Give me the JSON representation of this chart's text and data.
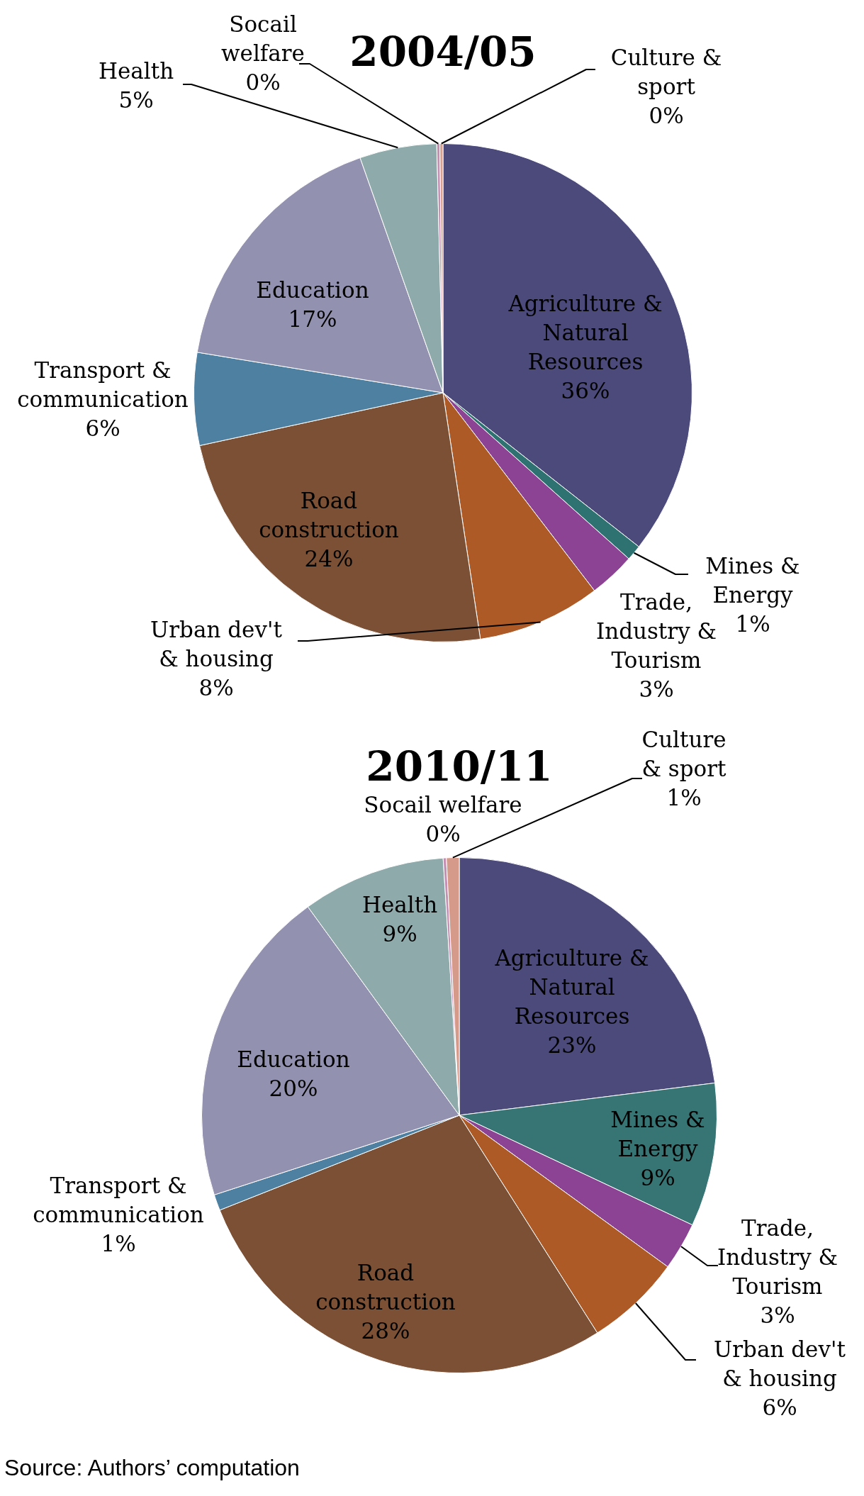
{
  "chart_data": [
    {
      "type": "pie",
      "title": "2004/05",
      "categories": [
        "Agriculture & Natural Resources",
        "Mines & Energy",
        "Trade, Industry & Tourism",
        "Urban dev't & housing",
        "Road construction",
        "Transport & communication",
        "Education",
        "Health",
        "Socail welfare",
        "Culture & sport"
      ],
      "values": [
        35.6,
        1,
        3,
        8,
        24,
        6,
        17,
        5,
        0.2,
        0.2
      ],
      "colors": [
        "#4b4a7b",
        "#2e7272",
        "#8c4394",
        "#ae5a27",
        "#7b5034",
        "#4e80a2",
        "#9391b0",
        "#8faaab",
        "#c48fb3",
        "#d9a08f"
      ],
      "value_labels": [
        "36%",
        "1%",
        "3%",
        "8%",
        "24%",
        "6%",
        "17%",
        "5%",
        "0%",
        "0%"
      ]
    },
    {
      "type": "pie",
      "title": "2010/11",
      "categories": [
        "Agriculture & Natural Resources",
        "Mines & Energy",
        "Trade, Industry & Tourism",
        "Urban dev't & housing",
        "Road construction",
        "Transport & communication",
        "Education",
        "Health",
        "Socail welfare",
        "Culture & sport"
      ],
      "values": [
        23,
        9,
        3,
        6,
        28,
        1,
        20,
        9,
        0.2,
        0.8
      ],
      "colors": [
        "#4b4a7b",
        "#377575",
        "#8c4394",
        "#ae5a27",
        "#7b5034",
        "#4e80a2",
        "#9391b0",
        "#8faaab",
        "#c48fb3",
        "#d69a8a"
      ],
      "value_labels": [
        "23%",
        "9%",
        "3%",
        "6%",
        "28%",
        "1%",
        "20%",
        "9%",
        "0%",
        "1%"
      ],
      "annotations": [
        "Source: Authors’ computation"
      ]
    }
  ]
}
